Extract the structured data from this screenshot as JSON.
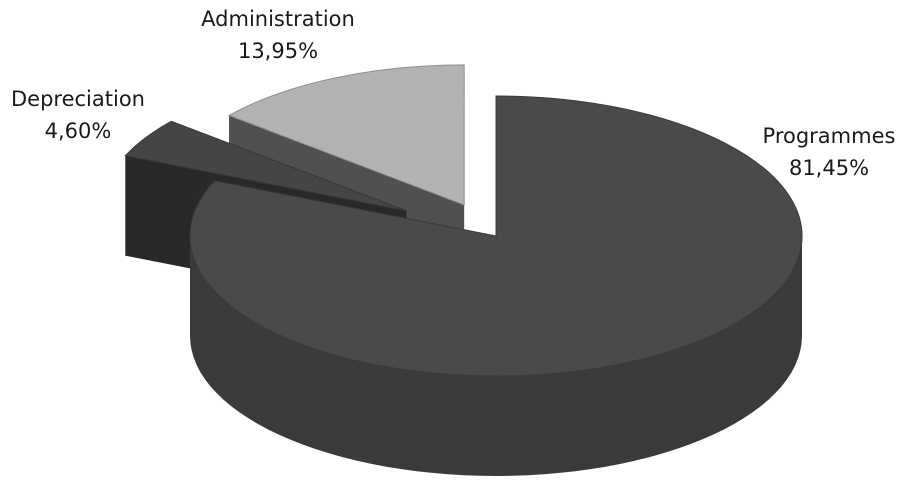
{
  "chart_data": {
    "type": "pie",
    "style": "3d-exploded",
    "title": "",
    "slices": [
      {
        "label": "Programmes",
        "value_text": "81,45%",
        "value": 81.45,
        "color": "#4a4a4a"
      },
      {
        "label": "Depreciation",
        "value_text": "4,60%",
        "value": 4.6,
        "color": "#454545"
      },
      {
        "label": "Administration",
        "value_text": "13,95%",
        "value": 13.95,
        "color": "#b2b2b2"
      }
    ],
    "legend": "none"
  }
}
